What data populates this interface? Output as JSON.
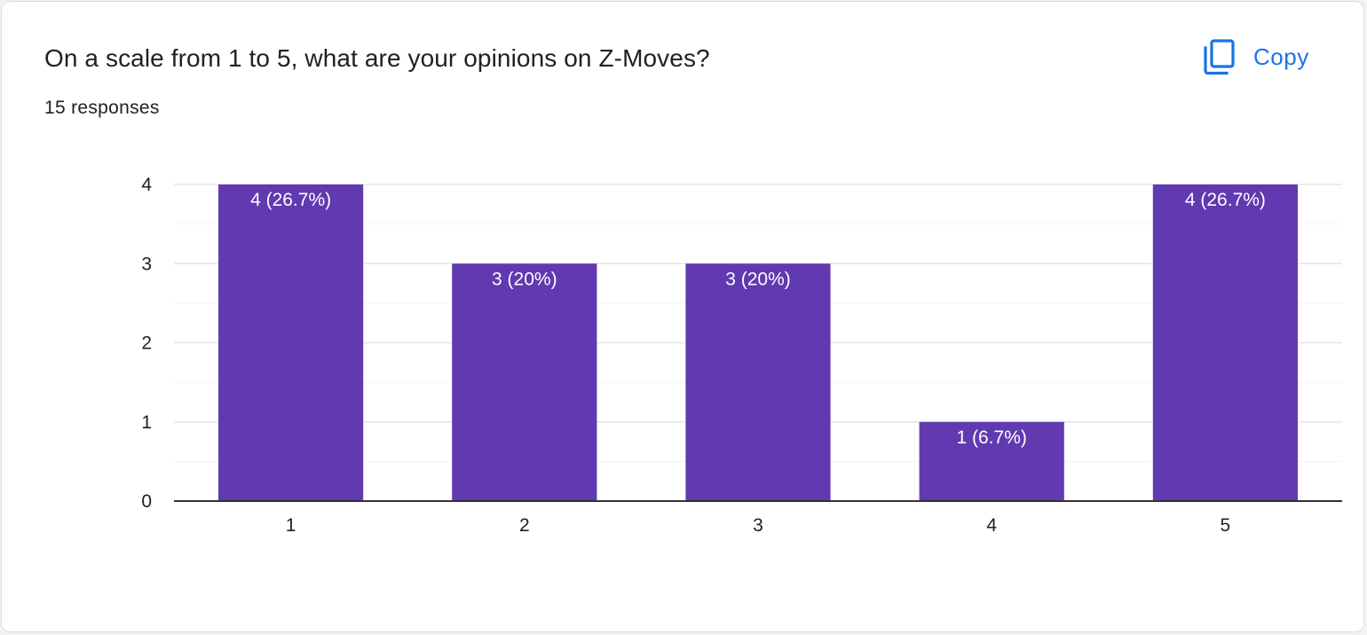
{
  "header": {
    "title": "On a scale from 1 to 5, what are your opinions on Z-Moves?",
    "responses": "15 responses",
    "copy_label": "Copy"
  },
  "icons": {
    "copy": "copy-icon"
  },
  "colors": {
    "bar": "#6139b0",
    "accent": "#1a73e8",
    "grid": "#e8e8e8",
    "axis": "#333333"
  },
  "chart_data": {
    "type": "bar",
    "categories": [
      "1",
      "2",
      "3",
      "4",
      "5"
    ],
    "values": [
      4,
      3,
      3,
      1,
      4
    ],
    "data_labels": [
      "4 (26.7%)",
      "3 (20%)",
      "3 (20%)",
      "1 (6.7%)",
      "4 (26.7%)"
    ],
    "y_ticks": [
      "0",
      "1",
      "2",
      "3",
      "4"
    ],
    "ylim": [
      0,
      4
    ],
    "minor_step": 0.5,
    "grid": true,
    "legend": "none",
    "title": "",
    "xlabel": "",
    "ylabel": ""
  }
}
